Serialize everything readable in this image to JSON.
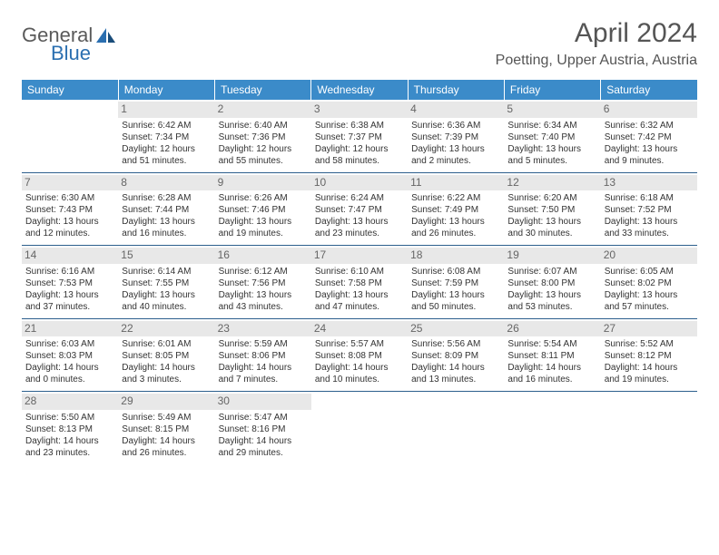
{
  "logo": {
    "text1": "General",
    "text2": "Blue"
  },
  "header": {
    "title": "April 2024",
    "location": "Poetting, Upper Austria, Austria"
  },
  "colors": {
    "header_bg": "#3b8bc9",
    "header_fg": "#ffffff",
    "daynum_bg": "#e8e8e8",
    "row_border": "#2c5f8d",
    "logo_gray": "#5a5a5a",
    "logo_blue": "#2b6fb0"
  },
  "weekdays": [
    "Sunday",
    "Monday",
    "Tuesday",
    "Wednesday",
    "Thursday",
    "Friday",
    "Saturday"
  ],
  "weeks": [
    [
      null,
      {
        "d": "1",
        "sr": "Sunrise: 6:42 AM",
        "ss": "Sunset: 7:34 PM",
        "dl1": "Daylight: 12 hours",
        "dl2": "and 51 minutes."
      },
      {
        "d": "2",
        "sr": "Sunrise: 6:40 AM",
        "ss": "Sunset: 7:36 PM",
        "dl1": "Daylight: 12 hours",
        "dl2": "and 55 minutes."
      },
      {
        "d": "3",
        "sr": "Sunrise: 6:38 AM",
        "ss": "Sunset: 7:37 PM",
        "dl1": "Daylight: 12 hours",
        "dl2": "and 58 minutes."
      },
      {
        "d": "4",
        "sr": "Sunrise: 6:36 AM",
        "ss": "Sunset: 7:39 PM",
        "dl1": "Daylight: 13 hours",
        "dl2": "and 2 minutes."
      },
      {
        "d": "5",
        "sr": "Sunrise: 6:34 AM",
        "ss": "Sunset: 7:40 PM",
        "dl1": "Daylight: 13 hours",
        "dl2": "and 5 minutes."
      },
      {
        "d": "6",
        "sr": "Sunrise: 6:32 AM",
        "ss": "Sunset: 7:42 PM",
        "dl1": "Daylight: 13 hours",
        "dl2": "and 9 minutes."
      }
    ],
    [
      {
        "d": "7",
        "sr": "Sunrise: 6:30 AM",
        "ss": "Sunset: 7:43 PM",
        "dl1": "Daylight: 13 hours",
        "dl2": "and 12 minutes."
      },
      {
        "d": "8",
        "sr": "Sunrise: 6:28 AM",
        "ss": "Sunset: 7:44 PM",
        "dl1": "Daylight: 13 hours",
        "dl2": "and 16 minutes."
      },
      {
        "d": "9",
        "sr": "Sunrise: 6:26 AM",
        "ss": "Sunset: 7:46 PM",
        "dl1": "Daylight: 13 hours",
        "dl2": "and 19 minutes."
      },
      {
        "d": "10",
        "sr": "Sunrise: 6:24 AM",
        "ss": "Sunset: 7:47 PM",
        "dl1": "Daylight: 13 hours",
        "dl2": "and 23 minutes."
      },
      {
        "d": "11",
        "sr": "Sunrise: 6:22 AM",
        "ss": "Sunset: 7:49 PM",
        "dl1": "Daylight: 13 hours",
        "dl2": "and 26 minutes."
      },
      {
        "d": "12",
        "sr": "Sunrise: 6:20 AM",
        "ss": "Sunset: 7:50 PM",
        "dl1": "Daylight: 13 hours",
        "dl2": "and 30 minutes."
      },
      {
        "d": "13",
        "sr": "Sunrise: 6:18 AM",
        "ss": "Sunset: 7:52 PM",
        "dl1": "Daylight: 13 hours",
        "dl2": "and 33 minutes."
      }
    ],
    [
      {
        "d": "14",
        "sr": "Sunrise: 6:16 AM",
        "ss": "Sunset: 7:53 PM",
        "dl1": "Daylight: 13 hours",
        "dl2": "and 37 minutes."
      },
      {
        "d": "15",
        "sr": "Sunrise: 6:14 AM",
        "ss": "Sunset: 7:55 PM",
        "dl1": "Daylight: 13 hours",
        "dl2": "and 40 minutes."
      },
      {
        "d": "16",
        "sr": "Sunrise: 6:12 AM",
        "ss": "Sunset: 7:56 PM",
        "dl1": "Daylight: 13 hours",
        "dl2": "and 43 minutes."
      },
      {
        "d": "17",
        "sr": "Sunrise: 6:10 AM",
        "ss": "Sunset: 7:58 PM",
        "dl1": "Daylight: 13 hours",
        "dl2": "and 47 minutes."
      },
      {
        "d": "18",
        "sr": "Sunrise: 6:08 AM",
        "ss": "Sunset: 7:59 PM",
        "dl1": "Daylight: 13 hours",
        "dl2": "and 50 minutes."
      },
      {
        "d": "19",
        "sr": "Sunrise: 6:07 AM",
        "ss": "Sunset: 8:00 PM",
        "dl1": "Daylight: 13 hours",
        "dl2": "and 53 minutes."
      },
      {
        "d": "20",
        "sr": "Sunrise: 6:05 AM",
        "ss": "Sunset: 8:02 PM",
        "dl1": "Daylight: 13 hours",
        "dl2": "and 57 minutes."
      }
    ],
    [
      {
        "d": "21",
        "sr": "Sunrise: 6:03 AM",
        "ss": "Sunset: 8:03 PM",
        "dl1": "Daylight: 14 hours",
        "dl2": "and 0 minutes."
      },
      {
        "d": "22",
        "sr": "Sunrise: 6:01 AM",
        "ss": "Sunset: 8:05 PM",
        "dl1": "Daylight: 14 hours",
        "dl2": "and 3 minutes."
      },
      {
        "d": "23",
        "sr": "Sunrise: 5:59 AM",
        "ss": "Sunset: 8:06 PM",
        "dl1": "Daylight: 14 hours",
        "dl2": "and 7 minutes."
      },
      {
        "d": "24",
        "sr": "Sunrise: 5:57 AM",
        "ss": "Sunset: 8:08 PM",
        "dl1": "Daylight: 14 hours",
        "dl2": "and 10 minutes."
      },
      {
        "d": "25",
        "sr": "Sunrise: 5:56 AM",
        "ss": "Sunset: 8:09 PM",
        "dl1": "Daylight: 14 hours",
        "dl2": "and 13 minutes."
      },
      {
        "d": "26",
        "sr": "Sunrise: 5:54 AM",
        "ss": "Sunset: 8:11 PM",
        "dl1": "Daylight: 14 hours",
        "dl2": "and 16 minutes."
      },
      {
        "d": "27",
        "sr": "Sunrise: 5:52 AM",
        "ss": "Sunset: 8:12 PM",
        "dl1": "Daylight: 14 hours",
        "dl2": "and 19 minutes."
      }
    ],
    [
      {
        "d": "28",
        "sr": "Sunrise: 5:50 AM",
        "ss": "Sunset: 8:13 PM",
        "dl1": "Daylight: 14 hours",
        "dl2": "and 23 minutes."
      },
      {
        "d": "29",
        "sr": "Sunrise: 5:49 AM",
        "ss": "Sunset: 8:15 PM",
        "dl1": "Daylight: 14 hours",
        "dl2": "and 26 minutes."
      },
      {
        "d": "30",
        "sr": "Sunrise: 5:47 AM",
        "ss": "Sunset: 8:16 PM",
        "dl1": "Daylight: 14 hours",
        "dl2": "and 29 minutes."
      },
      null,
      null,
      null,
      null
    ]
  ]
}
